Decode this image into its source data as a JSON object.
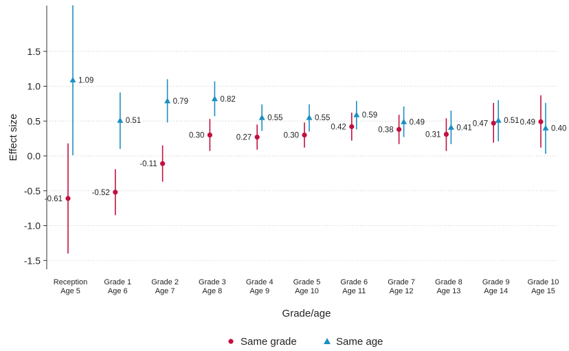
{
  "chart_data": {
    "type": "scatter",
    "xlabel": "Grade/age",
    "ylabel": "Effect size",
    "ylim": [
      -1.5,
      1.5
    ],
    "yticks": [
      1.5,
      1.0,
      0.5,
      0.0,
      -0.5,
      -1.0,
      -1.5
    ],
    "ytick_labels": [
      "1.5",
      "1.0",
      "0.5",
      "0.0",
      "-0.5",
      "-1.0",
      "-1.5"
    ],
    "grid": true,
    "legend_position": "bottom",
    "categories": [
      {
        "line1": "Reception",
        "line2": "Age 5"
      },
      {
        "line1": "Grade 1",
        "line2": "Age 6"
      },
      {
        "line1": "Grade 2",
        "line2": "Age 7"
      },
      {
        "line1": "Grade 3",
        "line2": "Age 8"
      },
      {
        "line1": "Grade 4",
        "line2": "Age 9"
      },
      {
        "line1": "Grade 5",
        "line2": "Age 10"
      },
      {
        "line1": "Grade 6",
        "line2": "Age 11"
      },
      {
        "line1": "Grade 7",
        "line2": "Age 12"
      },
      {
        "line1": "Grade 8",
        "line2": "Age 13"
      },
      {
        "line1": "Grade 9",
        "line2": "Age 14"
      },
      {
        "line1": "Grade 10",
        "line2": "Age 15"
      }
    ],
    "series": [
      {
        "name": "Same grade",
        "marker": "circle",
        "color": "#c2103f",
        "values": [
          -0.61,
          -0.52,
          -0.11,
          0.3,
          0.27,
          0.3,
          0.42,
          0.38,
          0.31,
          0.47,
          0.49
        ],
        "labels": [
          "-0.61",
          "-0.52",
          "-0.11",
          "0.30",
          "0.27",
          "0.30",
          "0.42",
          "0.38",
          "0.31",
          "0.47",
          "0.49"
        ],
        "ci_low": [
          -1.4,
          -0.85,
          -0.37,
          0.07,
          0.09,
          0.12,
          0.22,
          0.17,
          0.07,
          0.19,
          0.12
        ],
        "ci_high": [
          0.18,
          -0.19,
          0.15,
          0.53,
          0.45,
          0.48,
          0.62,
          0.59,
          0.54,
          0.76,
          0.87
        ]
      },
      {
        "name": "Same age",
        "marker": "triangle",
        "color": "#1a8fc0",
        "values": [
          1.09,
          0.51,
          0.79,
          0.82,
          0.55,
          0.55,
          0.59,
          0.49,
          0.41,
          0.51,
          0.4
        ],
        "labels": [
          "1.09",
          "0.51",
          "0.79",
          "0.82",
          "0.55",
          "0.55",
          "0.59",
          "0.49",
          "0.41",
          "0.51",
          "0.40"
        ],
        "ci_low": [
          0.01,
          0.1,
          0.48,
          0.57,
          0.36,
          0.35,
          0.38,
          0.27,
          0.17,
          0.21,
          0.03
        ],
        "ci_high": [
          2.16,
          0.91,
          1.1,
          1.07,
          0.74,
          0.74,
          0.79,
          0.71,
          0.65,
          0.8,
          0.76
        ]
      }
    ]
  }
}
